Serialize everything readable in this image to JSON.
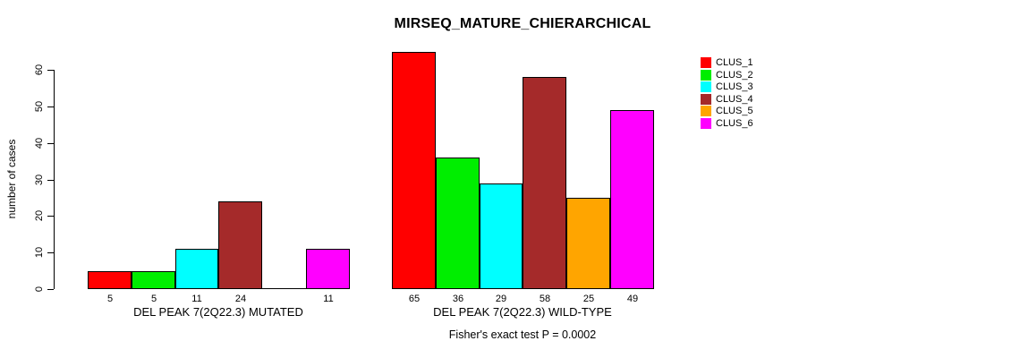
{
  "chart_data": {
    "type": "bar",
    "title": "MIRSEQ_MATURE_CHIERARCHICAL",
    "ylabel": "number of cases",
    "xlabel": "",
    "ylim": [
      0,
      65
    ],
    "yticks": [
      "0",
      "10",
      "20",
      "30",
      "40",
      "50",
      "60"
    ],
    "grid": false,
    "legend_position": "top-right",
    "annotation": "Fisher's exact test P = 0.0002",
    "groups": [
      {
        "label": "DEL PEAK  7(2Q22.3) MUTATED",
        "values": [
          5,
          5,
          11,
          24,
          0,
          11
        ],
        "bar_labels": [
          "5",
          "5",
          "11",
          "24",
          "",
          "11"
        ]
      },
      {
        "label": "DEL PEAK  7(2Q22.3) WILD-TYPE",
        "values": [
          65,
          36,
          29,
          58,
          25,
          49
        ],
        "bar_labels": [
          "65",
          "36",
          "29",
          "58",
          "25",
          "49"
        ]
      }
    ],
    "series": [
      {
        "name": "CLUS_1",
        "color": "#FF0000",
        "values": [
          5,
          65
        ]
      },
      {
        "name": "CLUS_2",
        "color": "#00EE00",
        "values": [
          5,
          36
        ]
      },
      {
        "name": "CLUS_3",
        "color": "#00FFFF",
        "values": [
          11,
          29
        ]
      },
      {
        "name": "CLUS_4",
        "color": "#A52A2A",
        "values": [
          24,
          58
        ]
      },
      {
        "name": "CLUS_5",
        "color": "#FFA500",
        "values": [
          0,
          25
        ]
      },
      {
        "name": "CLUS_6",
        "color": "#FF00FF",
        "values": [
          11,
          49
        ]
      }
    ]
  }
}
